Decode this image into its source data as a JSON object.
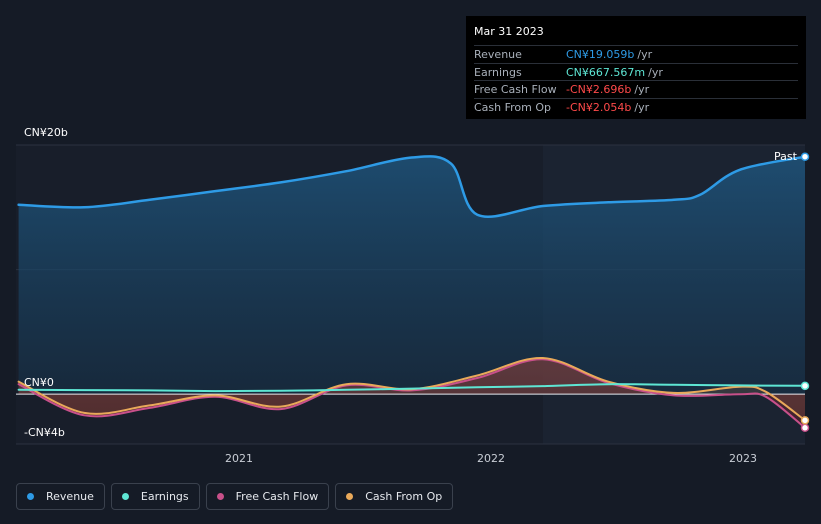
{
  "tooltip": {
    "date": "Mar 31 2023",
    "rows": [
      {
        "label": "Revenue",
        "value": "CN¥19.059b",
        "unit": "/yr",
        "color": "#2e9be6"
      },
      {
        "label": "Earnings",
        "value": "CN¥667.567m",
        "unit": "/yr",
        "color": "#5ee6d4"
      },
      {
        "label": "Free Cash Flow",
        "value": "-CN¥2.696b",
        "unit": "/yr",
        "color": "#ff4a4a"
      },
      {
        "label": "Cash From Op",
        "value": "-CN¥2.054b",
        "unit": "/yr",
        "color": "#ff4a4a"
      }
    ]
  },
  "past_label": "Past",
  "legend": [
    {
      "label": "Revenue",
      "color": "#2e9be6"
    },
    {
      "label": "Earnings",
      "color": "#5ee6d4"
    },
    {
      "label": "Free Cash Flow",
      "color": "#c8508a"
    },
    {
      "label": "Cash From Op",
      "color": "#e9a95a"
    }
  ],
  "chart_data": {
    "type": "area",
    "y_tick_labels": [
      "CN¥20b",
      "CN¥0",
      "-CN¥4b"
    ],
    "x_tick_labels": [
      "2021",
      "2022",
      "2023"
    ],
    "ylim": [
      -4,
      20
    ],
    "xlim": [
      2020.24,
      2023.25
    ],
    "highlight_start": 2022.25,
    "series": [
      {
        "name": "Revenue",
        "color": "#2e9be6",
        "x": [
          2020.25,
          2020.5,
          2020.75,
          2021.0,
          2021.25,
          2021.5,
          2021.75,
          2021.9,
          2022.0,
          2022.25,
          2022.5,
          2022.75,
          2022.85,
          2023.0,
          2023.25
        ],
        "y": [
          15.2,
          15.0,
          15.6,
          16.3,
          17.0,
          17.9,
          19.0,
          18.5,
          14.4,
          15.1,
          15.4,
          15.6,
          16.0,
          18.0,
          19.06
        ]
      },
      {
        "name": "Earnings",
        "color": "#5ee6d4",
        "x": [
          2020.25,
          2020.5,
          2020.75,
          2021.0,
          2021.25,
          2021.5,
          2021.75,
          2022.0,
          2022.25,
          2022.5,
          2022.75,
          2023.0,
          2023.25
        ],
        "y": [
          0.35,
          0.33,
          0.3,
          0.25,
          0.28,
          0.35,
          0.45,
          0.55,
          0.65,
          0.8,
          0.75,
          0.7,
          0.67
        ]
      },
      {
        "name": "Free Cash Flow",
        "color": "#c8508a",
        "x": [
          2020.25,
          2020.5,
          2020.75,
          2021.0,
          2021.25,
          2021.5,
          2021.75,
          2022.0,
          2022.25,
          2022.5,
          2022.75,
          2023.0,
          2023.1,
          2023.25
        ],
        "y": [
          0.8,
          -1.7,
          -1.1,
          -0.2,
          -1.2,
          0.7,
          0.3,
          1.3,
          2.8,
          0.9,
          -0.1,
          0.0,
          -0.2,
          -2.7
        ]
      },
      {
        "name": "Cash From Op",
        "color": "#e9a95a",
        "x": [
          2020.25,
          2020.5,
          2020.75,
          2021.0,
          2021.25,
          2021.5,
          2021.75,
          2022.0,
          2022.25,
          2022.5,
          2022.75,
          2023.0,
          2023.1,
          2023.25
        ],
        "y": [
          1.0,
          -1.5,
          -0.9,
          -0.1,
          -1.0,
          0.8,
          0.4,
          1.5,
          2.9,
          1.0,
          0.1,
          0.6,
          0.2,
          -2.1
        ]
      }
    ]
  }
}
